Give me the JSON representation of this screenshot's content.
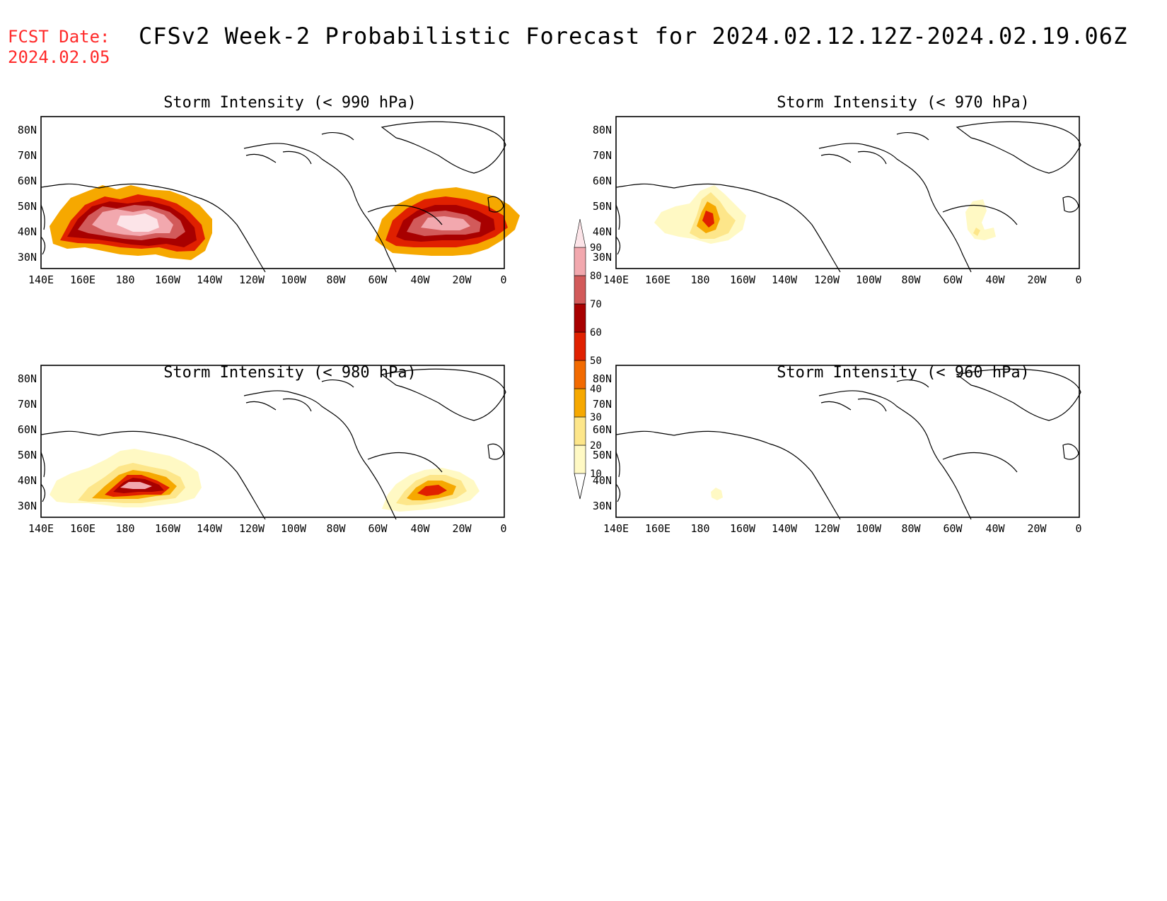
{
  "header": {
    "fcst_label": "FCST Date:",
    "fcst_date": "2024.02.05",
    "title": "CFSv2 Week-2 Probabilistic Forecast for 2024.02.12.12Z-2024.02.19.06Z"
  },
  "axes": {
    "lon_labels": [
      "140E",
      "160E",
      "180",
      "160W",
      "140W",
      "120W",
      "100W",
      "80W",
      "60W",
      "40W",
      "20W",
      "0"
    ],
    "lat_labels": [
      "80N",
      "70N",
      "60N",
      "50N",
      "40N",
      "30N"
    ],
    "lon_range_deg_east": [
      140,
      360
    ],
    "lat_range_deg_north": [
      25,
      85
    ]
  },
  "panels": [
    {
      "id": "p990",
      "title": "Storm Intensity (< 990 hPa)"
    },
    {
      "id": "p970",
      "title": "Storm Intensity (< 970 hPa)"
    },
    {
      "id": "p980",
      "title": "Storm Intensity (< 980 hPa)"
    },
    {
      "id": "p960",
      "title": "Storm Intensity (< 960 hPa)"
    }
  ],
  "colorbar": {
    "levels": [
      "10",
      "20",
      "30",
      "40",
      "50",
      "60",
      "70",
      "80",
      "90"
    ],
    "colors": [
      "#fff9c4",
      "#fde68a",
      "#f6a800",
      "#f26a00",
      "#e02000",
      "#a80000",
      "#d25a5a",
      "#f2a8ae",
      "#fce4e8"
    ]
  }
}
